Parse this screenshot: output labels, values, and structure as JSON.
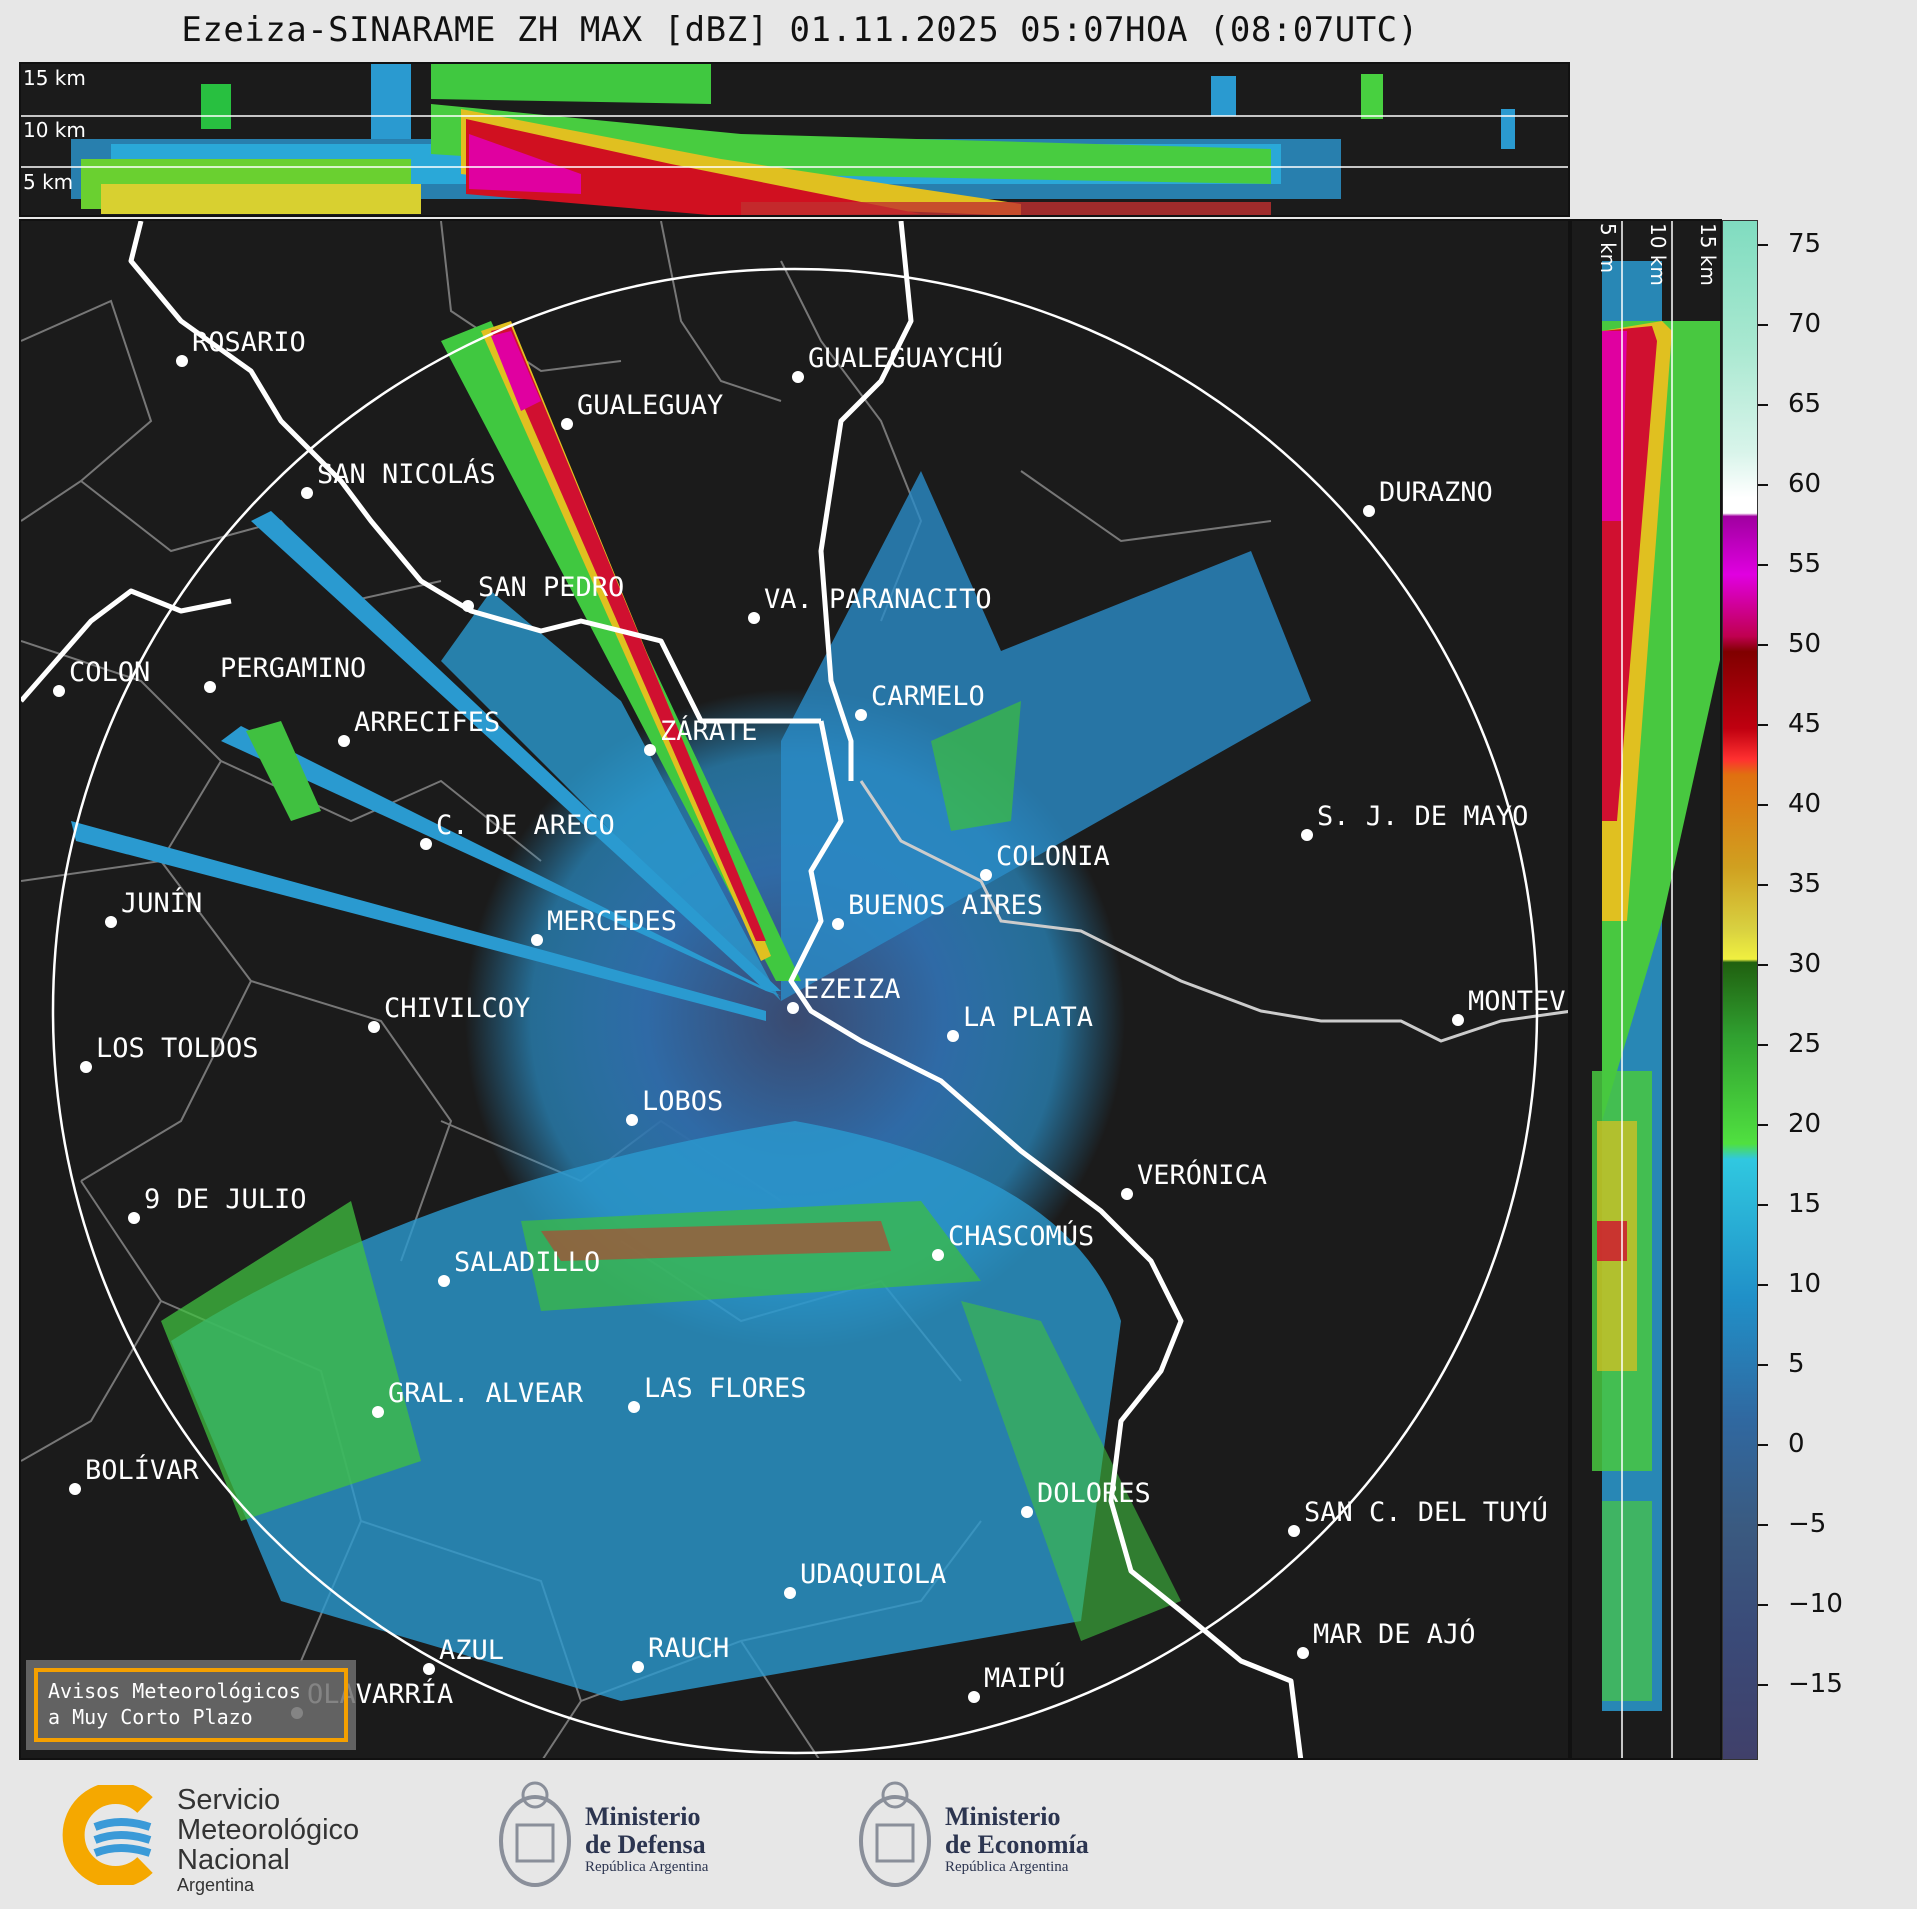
{
  "title": "Ezeiza-SINARAME ZH MAX [dBZ] 01.11.2025 05:07HOA (08:07UTC)",
  "top_profile": {
    "altitude_labels": [
      "15 km",
      "10 km",
      "5 km"
    ]
  },
  "side_profile": {
    "altitude_labels": [
      "5 km",
      "10 km",
      "15 km"
    ]
  },
  "colorbar": {
    "unit": "dBZ",
    "ticks": [
      "75",
      "70",
      "65",
      "60",
      "55",
      "50",
      "45",
      "40",
      "35",
      "30",
      "25",
      "20",
      "15",
      "10",
      "5",
      "0",
      "−5",
      "−10",
      "−15"
    ],
    "colors": {
      "very_high": "#7fdcbf",
      "white": "#ffffff",
      "magenta": "#c000c0",
      "red": "#d00020",
      "orange": "#e09010",
      "yellow": "#e8e030",
      "green": "#30c030",
      "light_blue": "#20a8d8",
      "blue": "#2870b0",
      "slate": "#3c5a80",
      "dark": "#3a3a70"
    }
  },
  "cities": [
    {
      "name": "ROSARIO"
    },
    {
      "name": "GUALEGUAYCHÚ"
    },
    {
      "name": "GUALEGUAY"
    },
    {
      "name": "SAN NICOLÁS"
    },
    {
      "name": "DURAZNO"
    },
    {
      "name": "SAN PEDRO"
    },
    {
      "name": "VA. PARANACITO"
    },
    {
      "name": "COLON"
    },
    {
      "name": "PERGAMINO"
    },
    {
      "name": "CARMELO"
    },
    {
      "name": "ARRECIFES"
    },
    {
      "name": "ZÁRATE"
    },
    {
      "name": "S. J. DE MAYO"
    },
    {
      "name": "C. DE ARECO"
    },
    {
      "name": "COLONIA"
    },
    {
      "name": "JUNÍN"
    },
    {
      "name": "BUENOS AIRES"
    },
    {
      "name": "MERCEDES"
    },
    {
      "name": "EZEIZA"
    },
    {
      "name": "MONTEV"
    },
    {
      "name": "CHIVILCOY"
    },
    {
      "name": "LA PLATA"
    },
    {
      "name": "LOS TOLDOS"
    },
    {
      "name": "LOBOS"
    },
    {
      "name": "VERÓNICA"
    },
    {
      "name": "9 DE JULIO"
    },
    {
      "name": "CHASCOMÚS"
    },
    {
      "name": "SALADILLO"
    },
    {
      "name": "GRAL. ALVEAR"
    },
    {
      "name": "LAS FLORES"
    },
    {
      "name": "BOLÍVAR"
    },
    {
      "name": "DOLORES"
    },
    {
      "name": "SAN C. DEL TUYÚ"
    },
    {
      "name": "UDAQUIOLA"
    },
    {
      "name": "MAR DE AJÓ"
    },
    {
      "name": "AZUL"
    },
    {
      "name": "RAUCH"
    },
    {
      "name": "OLAVARRÍA"
    },
    {
      "name": "MAIPÚ"
    }
  ],
  "avisos": {
    "line1": "Avisos Meteorológicos",
    "line2": "a Muy Corto Plazo"
  },
  "logos": {
    "smn": {
      "line1": "Servicio",
      "line2": "Meteorológico",
      "line3": "Nacional",
      "line4": "Argentina"
    },
    "defensa": {
      "title1": "Ministerio",
      "title2": "de Defensa",
      "subtitle": "República Argentina"
    },
    "economia": {
      "title1": "Ministerio",
      "title2": "de Economía",
      "subtitle": "República Argentina"
    }
  }
}
